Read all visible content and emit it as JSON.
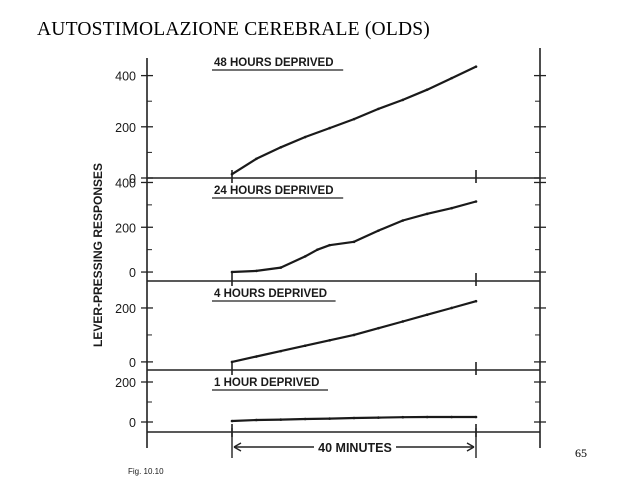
{
  "slide": {
    "title": "AUTOSTIMOLAZIONE CEREBRALE (OLDS)",
    "page_number": "65"
  },
  "chart_data": {
    "type": "line",
    "ylabel": "LEVER-PRESSING RESPONSES",
    "xlabel": "40 MINUTES",
    "caption": "Fig. 10.10",
    "x_unit": "minutes",
    "color": "#1a1a1a",
    "panels": [
      {
        "name": "48 HOURS DEPRIVED",
        "ylim": [
          0,
          500
        ],
        "yticks": [
          0,
          200,
          400
        ],
        "x": [
          0,
          4,
          8,
          12,
          16,
          20,
          24,
          28,
          32,
          36,
          40
        ],
        "values": [
          15,
          75,
          120,
          160,
          195,
          230,
          270,
          305,
          345,
          390,
          435
        ]
      },
      {
        "name": "24 HOURS DEPRIVED",
        "ylim": [
          -40,
          420
        ],
        "yticks": [
          0,
          200,
          400
        ],
        "x": [
          0,
          4,
          8,
          12,
          14,
          16,
          20,
          24,
          28,
          32,
          36,
          40
        ],
        "values": [
          0,
          5,
          20,
          70,
          100,
          120,
          135,
          185,
          230,
          260,
          285,
          315
        ]
      },
      {
        "name": "4 HOURS DEPRIVED",
        "ylim": [
          -30,
          300
        ],
        "yticks": [
          0,
          200
        ],
        "x": [
          0,
          4,
          8,
          12,
          16,
          20,
          24,
          28,
          32,
          36,
          40
        ],
        "values": [
          0,
          20,
          40,
          60,
          80,
          100,
          125,
          150,
          175,
          200,
          225
        ]
      },
      {
        "name": "1 HOUR DEPRIVED",
        "ylim": [
          -50,
          260
        ],
        "yticks": [
          0,
          200
        ],
        "x": [
          0,
          4,
          8,
          12,
          16,
          20,
          24,
          28,
          32,
          36,
          40
        ],
        "values": [
          5,
          10,
          12,
          15,
          17,
          20,
          22,
          24,
          25,
          25,
          25
        ]
      }
    ]
  }
}
